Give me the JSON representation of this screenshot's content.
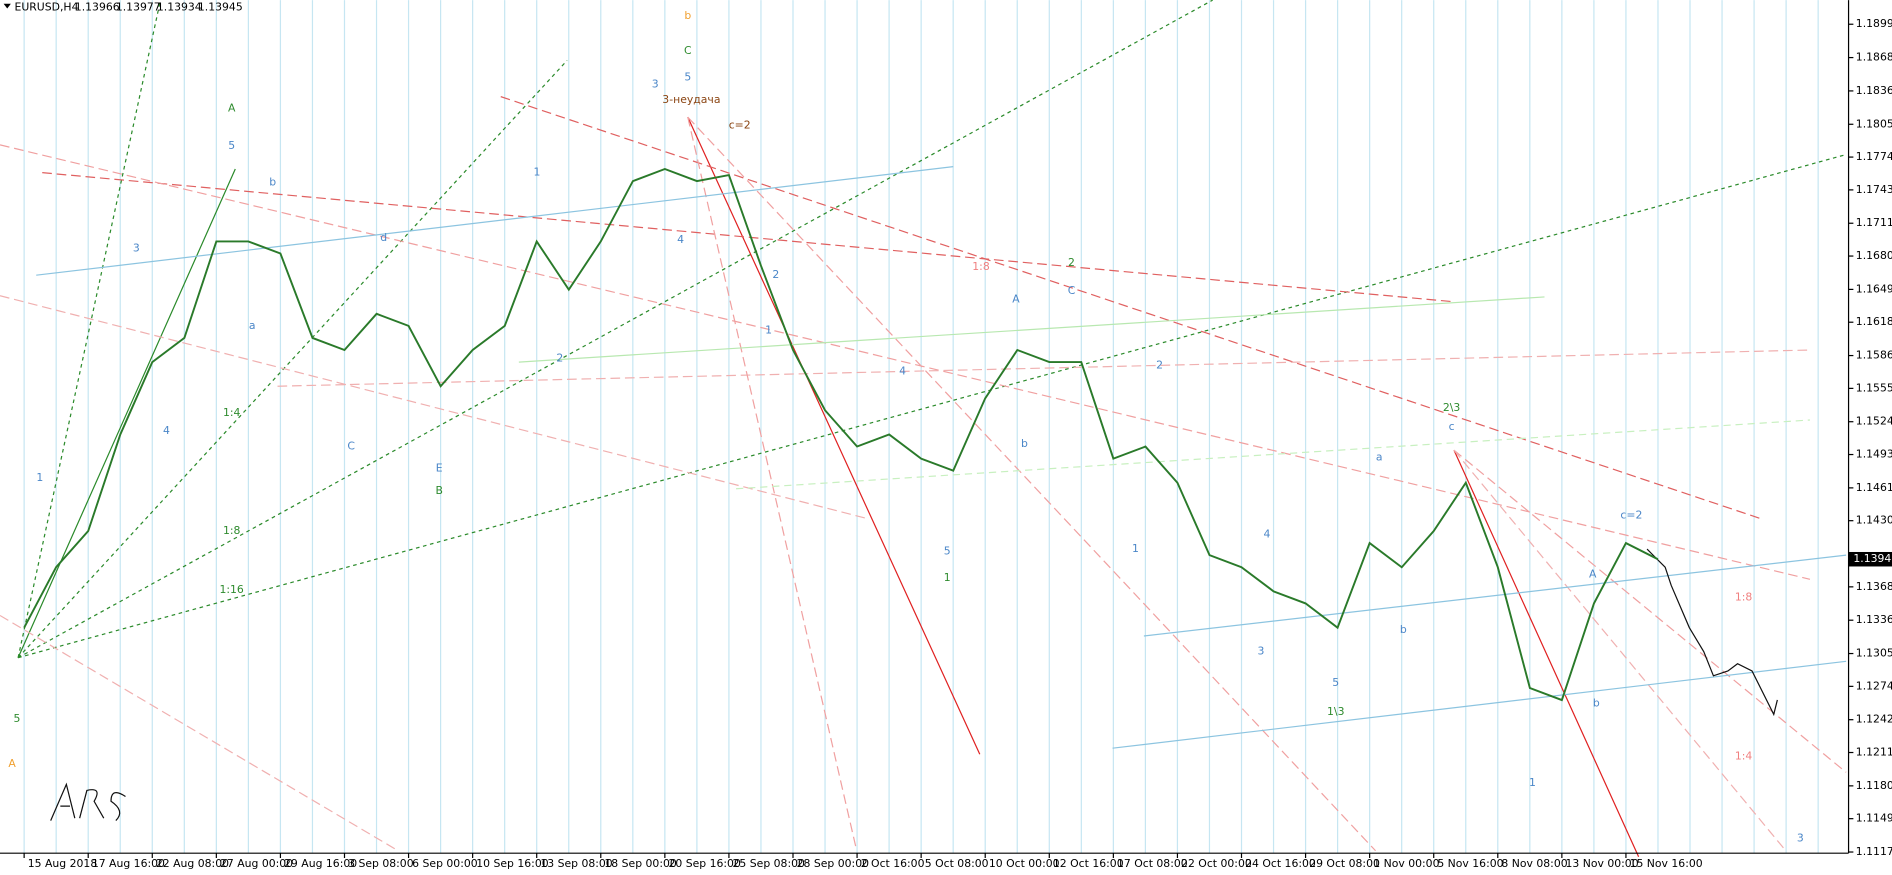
{
  "chart_data": {
    "type": "line",
    "symbol": "EURUSD,H4",
    "ohlc": [
      1.13966,
      1.13977,
      1.13934,
      1.13945
    ],
    "current_price": 1.13945,
    "categories": [
      "15 Aug 2018",
      null,
      "17 Aug 16:00",
      null,
      "22 Aug 08:00",
      null,
      "27 Aug 00:00",
      null,
      "29 Aug 16:00",
      null,
      "3 Sep 08:00",
      null,
      "6 Sep 00:00",
      null,
      "10 Sep 16:00",
      null,
      "13 Sep 08:00",
      null,
      "18 Sep 00:00",
      null,
      "20 Sep 16:00",
      null,
      "25 Sep 08:00",
      null,
      "28 Sep 00:00",
      null,
      "2 Oct 16:00",
      null,
      "5 Oct 08:00",
      null,
      "10 Oct 00:00",
      null,
      "12 Oct 16:00",
      null,
      "17 Oct 08:00",
      null,
      "22 Oct 00:00",
      null,
      "24 Oct 16:00",
      null,
      "29 Oct 08:00",
      null,
      "1 Nov 00:00",
      null,
      "5 Nov 16:00",
      null,
      "8 Nov 08:00",
      null,
      "13 Nov 00:00",
      null,
      "15 Nov 16:00",
      null
    ],
    "series": [
      {
        "name": "EURUSD",
        "color": "#2a7a2a",
        "values": [
          1.13299,
          1.13869,
          1.14211,
          1.15123,
          1.15807,
          1.16035,
          1.16947,
          1.16947,
          1.16833,
          1.16035,
          1.15921,
          1.16263,
          1.16149,
          1.15579,
          1.15921,
          1.16149,
          1.16947,
          1.16491,
          1.16947,
          1.17517,
          1.17631,
          1.17517,
          1.17574,
          1.16719,
          1.15921,
          1.15351,
          1.15009,
          1.15123,
          1.14895,
          1.14781,
          1.15465,
          1.15921,
          1.15807,
          1.15807,
          1.14895,
          1.15009,
          1.14667,
          1.13983,
          1.13869,
          1.13641,
          1.13527,
          1.13299,
          1.14097,
          1.13869,
          1.14211,
          1.14667,
          1.13869,
          1.12729,
          1.12615,
          1.13527,
          1.14097,
          1.13945
        ]
      }
    ],
    "ylim": [
      1.11168,
      1.19227
    ],
    "yticks": [
      1.18999,
      1.18684,
      1.18369,
      1.18054,
      1.17744,
      1.17434,
      1.17119,
      1.16809,
      1.16494,
      1.16184,
      1.15869,
      1.15559,
      1.15244,
      1.14934,
      1.14619,
      1.14309,
      1.13684,
      1.13369,
      1.13054,
      1.12744,
      1.12429,
      1.12119,
      1.11804,
      1.11494,
      1.11179
    ],
    "grid": "vertical",
    "annotations": [
      "b",
      "C",
      "5",
      "3",
      "3-неудача",
      "A",
      "5",
      "b",
      "3",
      "1",
      "2",
      "C",
      "A",
      "2\\3",
      "c",
      "a",
      "1\\3",
      "5",
      "B",
      "E",
      "C",
      "4",
      "1",
      "5",
      "5",
      "A",
      "1",
      "c=2",
      "A",
      "b",
      "1",
      "3",
      "b",
      "4",
      "1",
      "2",
      "4",
      "b",
      "4",
      "2",
      "1",
      "2",
      "a",
      "3",
      "1:8",
      "1:4",
      "1:8",
      "1:16",
      "1:8",
      "1:4",
      "c=2",
      "d"
    ]
  }
}
